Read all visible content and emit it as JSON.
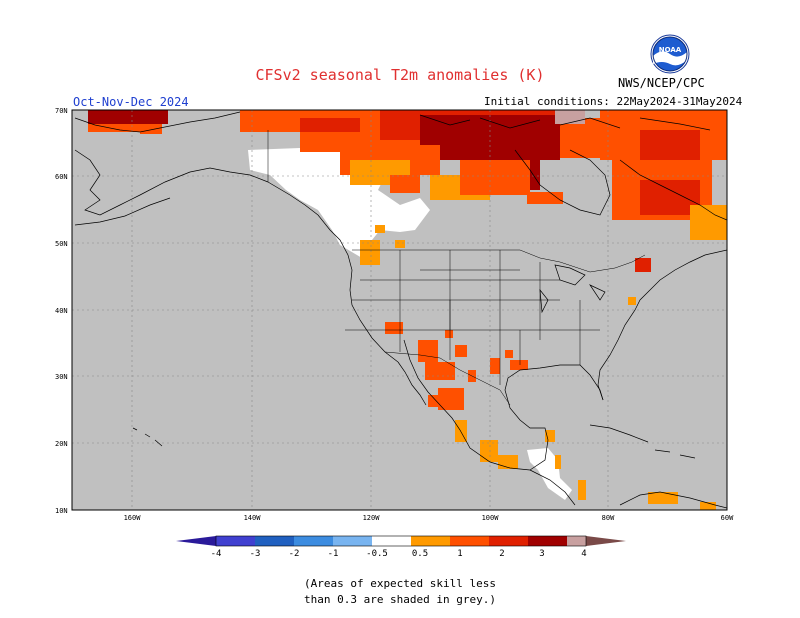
{
  "title": "CFSv2 seasonal T2m anomalies (K)",
  "period": "Oct-Nov-Dec 2024",
  "agency": "NWS/NCEP/CPC",
  "logo_text": "NOAA",
  "initial_conditions": "Initial conditions: 22May2024-31May2024",
  "note_line1": "(Areas of expected skill less",
  "note_line2": "than 0.3 are shaded in grey.)",
  "map": {
    "lat_labels": [
      "70N",
      "60N",
      "50N",
      "40N",
      "30N",
      "20N",
      "10N"
    ],
    "lon_labels": [
      "160W",
      "140W",
      "120W",
      "100W",
      "80W",
      "60W"
    ],
    "colors": {
      "skill_grey": "#c0c0c0",
      "land_white": "#ffffff",
      "ocean_white": "#ffffff"
    }
  },
  "colorbar": {
    "tick_labels": [
      "-4",
      "-3",
      "-2",
      "-1",
      "-0.5",
      "0.5",
      "1",
      "2",
      "3",
      "4"
    ],
    "colors": [
      "#2a1a9a",
      "#4040d0",
      "#2060c0",
      "#3c8ce0",
      "#78b4f0",
      "#ffffff",
      "#ff9a00",
      "#ff5000",
      "#e02000",
      "#a00000",
      "#c8a0a0",
      "#7a4a48"
    ]
  },
  "anomaly_colors": {
    "a05": "#ff9a00",
    "a1": "#ff5000",
    "a2": "#e02000",
    "a3": "#a00000",
    "a4": "#c8a0a0"
  }
}
